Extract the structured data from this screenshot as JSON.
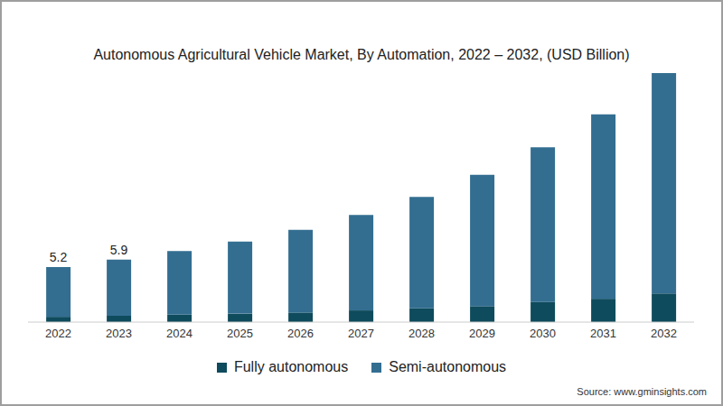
{
  "chart_data": {
    "type": "bar",
    "title": "Autonomous Agricultural Vehicle Market, By Automation, 2022 – 2032, (USD Billion)",
    "source": "Source: www.gminsights.com",
    "stacked": true,
    "tick_labels": "x",
    "grid": false,
    "legend": "bottom",
    "categories": [
      "2022",
      "2023",
      "2024",
      "2025",
      "2026",
      "2027",
      "2028",
      "2029",
      "2030",
      "2031",
      "2032"
    ],
    "series": [
      {
        "name": "Fully autonomous",
        "color": "#0e4b5c",
        "values": [
          0.5,
          0.6,
          0.7,
          0.8,
          0.9,
          1.1,
          1.3,
          1.5,
          1.9,
          2.2,
          2.7
        ]
      },
      {
        "name": "Semi-autonomous",
        "color": "#336e91",
        "values": [
          4.7,
          5.3,
          6.0,
          6.8,
          7.8,
          9.0,
          10.5,
          12.4,
          14.6,
          17.4,
          20.8
        ]
      }
    ],
    "ylim": [
      0,
      24
    ],
    "annotations": [
      {
        "x": "2022",
        "y": 5.2,
        "text": "5.2"
      },
      {
        "x": "2023",
        "y": 5.9,
        "text": "5.9"
      }
    ]
  }
}
